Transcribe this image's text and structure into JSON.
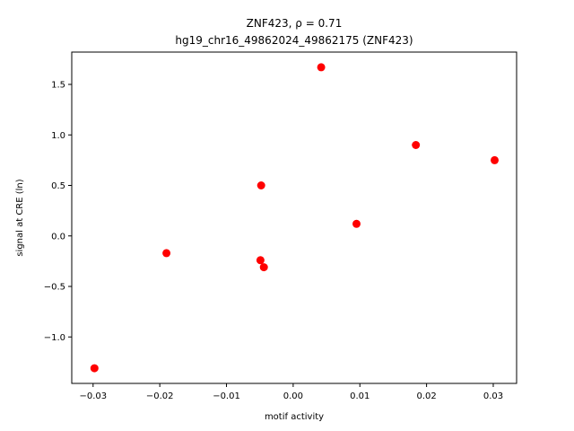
{
  "chart_data": {
    "type": "scatter",
    "title_line1": "ZNF423, ρ = 0.71",
    "title_line2": "hg19_chr16_49862024_49862175 (ZNF423)",
    "xlabel": "motif activity",
    "ylabel": "signal at CRE (ln)",
    "xlim": [
      -0.0332,
      0.0335
    ],
    "ylim": [
      -1.46,
      1.82
    ],
    "xticks": [
      {
        "value": -0.03,
        "label": "−0.03"
      },
      {
        "value": -0.02,
        "label": "−0.02"
      },
      {
        "value": -0.01,
        "label": "−0.01"
      },
      {
        "value": 0.0,
        "label": "0.00"
      },
      {
        "value": 0.01,
        "label": "0.01"
      },
      {
        "value": 0.02,
        "label": "0.02"
      },
      {
        "value": 0.03,
        "label": "0.03"
      }
    ],
    "yticks": [
      {
        "value": -1.0,
        "label": "−1.0"
      },
      {
        "value": -0.5,
        "label": "−0.5"
      },
      {
        "value": 0.0,
        "label": "0.0"
      },
      {
        "value": 0.5,
        "label": "0.5"
      },
      {
        "value": 1.0,
        "label": "1.0"
      },
      {
        "value": 1.5,
        "label": "1.5"
      }
    ],
    "points": [
      {
        "x": -0.0298,
        "y": -1.31
      },
      {
        "x": -0.019,
        "y": -0.17
      },
      {
        "x": -0.0049,
        "y": -0.24
      },
      {
        "x": -0.0044,
        "y": -0.31
      },
      {
        "x": -0.0048,
        "y": 0.5
      },
      {
        "x": 0.0042,
        "y": 1.67
      },
      {
        "x": 0.0095,
        "y": 0.12
      },
      {
        "x": 0.0184,
        "y": 0.9
      },
      {
        "x": 0.0302,
        "y": 0.75
      }
    ],
    "marker_color": "#ff0000",
    "grid": false,
    "legend": false
  }
}
